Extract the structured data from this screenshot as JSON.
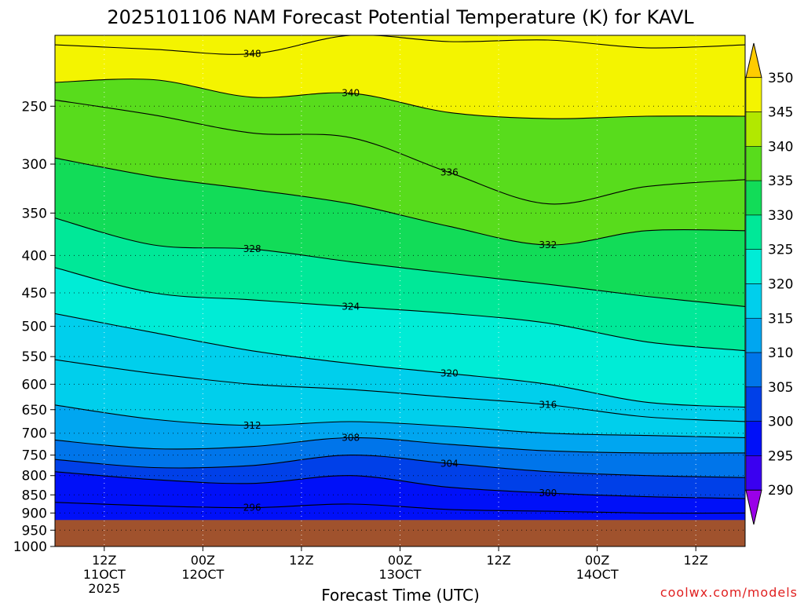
{
  "chart_data": {
    "type": "heatmap",
    "title": "2025101106 NAM Forecast Potential Temperature (K) for KAVL",
    "xlabel": "Forecast Time (UTC)",
    "ylabel": "",
    "credit": "coolwx.com/models",
    "y_scale": "log-pressure",
    "y_axis": {
      "range_hpa": [
        1000,
        200
      ],
      "ticks": [
        "250",
        "300",
        "350",
        "400",
        "450",
        "500",
        "550",
        "600",
        "650",
        "700",
        "750",
        "800",
        "850",
        "900",
        "950",
        "1000"
      ]
    },
    "x_axis": {
      "range": [
        "2025-10-11 06Z",
        "2025-10-14 18Z"
      ],
      "ticks": [
        {
          "time": "2025-10-11 12Z",
          "lines": [
            "12Z",
            "11OCT",
            "2025"
          ]
        },
        {
          "time": "2025-10-12 00Z",
          "lines": [
            "00Z",
            "12OCT"
          ]
        },
        {
          "time": "2025-10-12 12Z",
          "lines": [
            "12Z"
          ]
        },
        {
          "time": "2025-10-13 00Z",
          "lines": [
            "00Z",
            "13OCT"
          ]
        },
        {
          "time": "2025-10-13 12Z",
          "lines": [
            "12Z"
          ]
        },
        {
          "time": "2025-10-14 00Z",
          "lines": [
            "00Z",
            "14OCT"
          ]
        },
        {
          "time": "2025-10-14 12Z",
          "lines": [
            "12Z"
          ]
        }
      ]
    },
    "grid": true,
    "colorbar": {
      "levels": [
        "290",
        "295",
        "300",
        "305",
        "310",
        "315",
        "320",
        "325",
        "330",
        "335",
        "340",
        "345",
        "350"
      ],
      "colors": [
        "#9a00e8",
        "#3a00f0",
        "#0010f8",
        "#0040e8",
        "#0075ea",
        "#00a6f0",
        "#00cfec",
        "#00ecd6",
        "#00e898",
        "#12dc58",
        "#58dc1c",
        "#b2e800",
        "#f4f400",
        "#ffcc00"
      ],
      "placement": "right"
    },
    "terrain_color": "#a0522d",
    "surface_pressure_hpa": 920,
    "series": [
      {
        "name": "348",
        "x_hours": [
          0,
          12,
          24,
          36,
          48,
          60,
          72,
          84
        ],
        "y_hpa": [
          206,
          209,
          212,
          200,
          204,
          203,
          208,
          206
        ]
      },
      {
        "name": "340",
        "x_hours": [
          0,
          12,
          24,
          36,
          48,
          60,
          72,
          84
        ],
        "y_hpa": [
          232,
          230,
          243,
          240,
          255,
          260,
          258,
          258
        ]
      },
      {
        "name": "336",
        "x_hours": [
          0,
          12,
          24,
          36,
          48,
          60,
          72,
          84
        ],
        "y_hpa": [
          245,
          257,
          272,
          276,
          308,
          340,
          322,
          315
        ]
      },
      {
        "name": "332",
        "x_hours": [
          0,
          12,
          24,
          36,
          48,
          60,
          72,
          84
        ],
        "y_hpa": [
          294,
          312,
          325,
          340,
          365,
          387,
          370,
          370
        ]
      },
      {
        "name": "328",
        "x_hours": [
          0,
          12,
          24,
          36,
          48,
          60,
          72,
          84
        ],
        "y_hpa": [
          355,
          387,
          392,
          408,
          423,
          438,
          455,
          470
        ]
      },
      {
        "name": "324",
        "x_hours": [
          0,
          12,
          24,
          36,
          48,
          60,
          72,
          84
        ],
        "y_hpa": [
          415,
          450,
          460,
          470,
          480,
          495,
          525,
          540
        ]
      },
      {
        "name": "320",
        "x_hours": [
          0,
          12,
          24,
          36,
          48,
          60,
          72,
          84
        ],
        "y_hpa": [
          480,
          510,
          540,
          562,
          580,
          600,
          635,
          645
        ]
      },
      {
        "name": "316",
        "x_hours": [
          0,
          12,
          24,
          36,
          48,
          60,
          72,
          84
        ],
        "y_hpa": [
          555,
          580,
          600,
          610,
          625,
          640,
          665,
          675
        ]
      },
      {
        "name": "312",
        "x_hours": [
          0,
          12,
          24,
          36,
          48,
          60,
          72,
          84
        ],
        "y_hpa": [
          640,
          670,
          683,
          675,
          685,
          700,
          705,
          710
        ]
      },
      {
        "name": "308",
        "x_hours": [
          0,
          12,
          24,
          36,
          48,
          60,
          72,
          84
        ],
        "y_hpa": [
          715,
          735,
          730,
          710,
          725,
          740,
          745,
          745
        ]
      },
      {
        "name": "304",
        "x_hours": [
          0,
          12,
          24,
          36,
          48,
          60,
          72,
          84
        ],
        "y_hpa": [
          760,
          780,
          775,
          750,
          770,
          790,
          800,
          805
        ]
      },
      {
        "name": "300",
        "x_hours": [
          0,
          12,
          24,
          36,
          48,
          60,
          72,
          84
        ],
        "y_hpa": [
          790,
          810,
          820,
          800,
          830,
          845,
          855,
          860
        ]
      },
      {
        "name": "296",
        "x_hours": [
          0,
          12,
          24,
          36,
          48,
          60,
          72,
          84
        ],
        "y_hpa": [
          870,
          880,
          885,
          875,
          890,
          895,
          900,
          900
        ]
      }
    ]
  }
}
